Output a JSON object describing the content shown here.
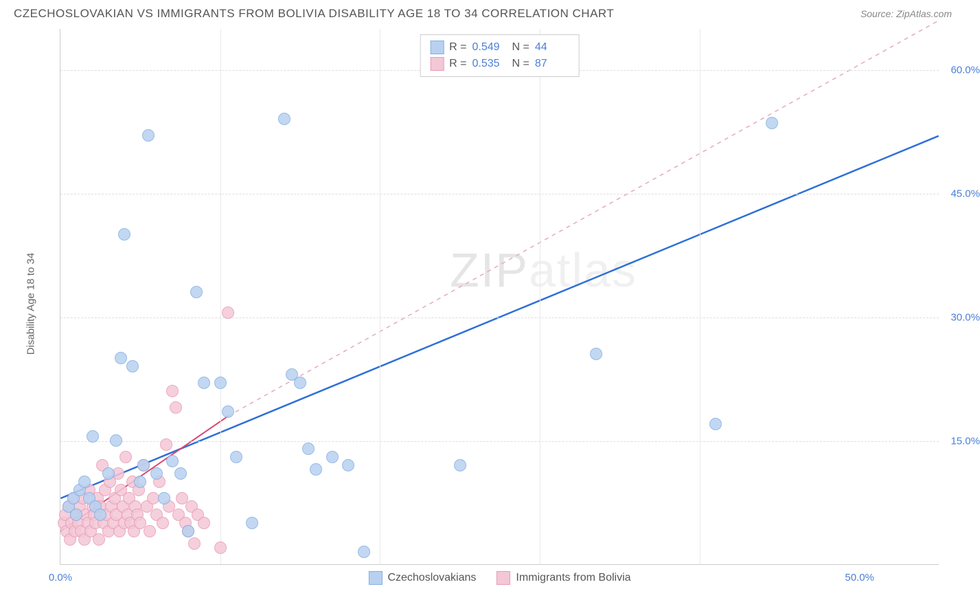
{
  "title": "CZECHOSLOVAKIAN VS IMMIGRANTS FROM BOLIVIA DISABILITY AGE 18 TO 34 CORRELATION CHART",
  "source": "Source: ZipAtlas.com",
  "watermark": {
    "z": "ZIP",
    "rest": "atlas"
  },
  "chart": {
    "type": "scatter",
    "ylabel": "Disability Age 18 to 34",
    "xlim": [
      0,
      55
    ],
    "ylim": [
      0,
      65
    ],
    "xticks": [
      {
        "v": 0,
        "l": "0.0%"
      },
      {
        "v": 50,
        "l": "50.0%"
      }
    ],
    "xminor": [
      10,
      20,
      30,
      40
    ],
    "yticks": [
      {
        "v": 15,
        "l": "15.0%"
      },
      {
        "v": 30,
        "l": "30.0%"
      },
      {
        "v": 45,
        "l": "45.0%"
      },
      {
        "v": 60,
        "l": "60.0%"
      }
    ],
    "grid_color": "#dddddd",
    "background_color": "#ffffff",
    "axis_color": "#cccccc",
    "tick_label_color": "#4a7fd8",
    "point_radius": 9,
    "series": [
      {
        "name": "Czechoslovakians",
        "color_fill": "#b8d1f0",
        "color_stroke": "#84aee0",
        "R": "0.549",
        "N": "44",
        "trend": {
          "x1": 0,
          "y1": 8,
          "x2": 55,
          "y2": 52,
          "style": "solid",
          "color": "#2e6fd8",
          "width": 2.5
        },
        "points": [
          [
            0.5,
            7
          ],
          [
            0.8,
            8
          ],
          [
            1,
            6
          ],
          [
            1.2,
            9
          ],
          [
            1.5,
            10
          ],
          [
            1.8,
            8
          ],
          [
            2,
            15.5
          ],
          [
            2.2,
            7
          ],
          [
            2.5,
            6
          ],
          [
            3,
            11
          ],
          [
            3.5,
            15
          ],
          [
            3.8,
            25
          ],
          [
            4,
            40
          ],
          [
            4.5,
            24
          ],
          [
            5,
            10
          ],
          [
            5.2,
            12
          ],
          [
            5.5,
            52
          ],
          [
            6,
            11
          ],
          [
            6.5,
            8
          ],
          [
            7,
            12.5
          ],
          [
            7.5,
            11
          ],
          [
            8,
            4
          ],
          [
            8.5,
            33
          ],
          [
            9,
            22
          ],
          [
            10,
            22
          ],
          [
            10.5,
            18.5
          ],
          [
            11,
            13
          ],
          [
            12,
            5
          ],
          [
            14,
            54
          ],
          [
            14.5,
            23
          ],
          [
            15,
            22
          ],
          [
            15.5,
            14
          ],
          [
            16,
            11.5
          ],
          [
            17,
            13
          ],
          [
            18,
            12
          ],
          [
            19,
            1.5
          ],
          [
            25,
            12
          ],
          [
            33.5,
            25.5
          ],
          [
            41,
            17
          ],
          [
            44.5,
            53.5
          ]
        ]
      },
      {
        "name": "Immigrants from Bolivia",
        "color_fill": "#f4c7d6",
        "color_stroke": "#e89bb4",
        "R": "0.535",
        "N": "87",
        "trend": {
          "x1": 0,
          "y1": 4,
          "x2": 10.5,
          "y2": 18,
          "style": "solid",
          "color": "#d8466f",
          "width": 2
        },
        "trend_ext": {
          "x1": 10.5,
          "y1": 18,
          "x2": 55,
          "y2": 66,
          "style": "dashed",
          "color": "#e8a8bd",
          "width": 1.5
        },
        "points": [
          [
            0.2,
            5
          ],
          [
            0.3,
            6
          ],
          [
            0.4,
            4
          ],
          [
            0.5,
            7
          ],
          [
            0.6,
            3
          ],
          [
            0.7,
            5
          ],
          [
            0.8,
            8
          ],
          [
            0.9,
            4
          ],
          [
            1,
            6
          ],
          [
            1.1,
            5
          ],
          [
            1.2,
            7
          ],
          [
            1.3,
            4
          ],
          [
            1.4,
            8
          ],
          [
            1.5,
            3
          ],
          [
            1.6,
            6
          ],
          [
            1.7,
            5
          ],
          [
            1.8,
            9
          ],
          [
            1.9,
            4
          ],
          [
            2,
            7
          ],
          [
            2.1,
            6
          ],
          [
            2.2,
            5
          ],
          [
            2.3,
            8
          ],
          [
            2.4,
            3
          ],
          [
            2.5,
            7
          ],
          [
            2.6,
            12
          ],
          [
            2.7,
            5
          ],
          [
            2.8,
            9
          ],
          [
            2.9,
            6
          ],
          [
            3,
            4
          ],
          [
            3.1,
            10
          ],
          [
            3.2,
            7
          ],
          [
            3.3,
            5
          ],
          [
            3.4,
            8
          ],
          [
            3.5,
            6
          ],
          [
            3.6,
            11
          ],
          [
            3.7,
            4
          ],
          [
            3.8,
            9
          ],
          [
            3.9,
            7
          ],
          [
            4,
            5
          ],
          [
            4.1,
            13
          ],
          [
            4.2,
            6
          ],
          [
            4.3,
            8
          ],
          [
            4.4,
            5
          ],
          [
            4.5,
            10
          ],
          [
            4.6,
            4
          ],
          [
            4.7,
            7
          ],
          [
            4.8,
            6
          ],
          [
            4.9,
            9
          ],
          [
            5,
            5
          ],
          [
            5.2,
            12
          ],
          [
            5.4,
            7
          ],
          [
            5.6,
            4
          ],
          [
            5.8,
            8
          ],
          [
            6,
            6
          ],
          [
            6.2,
            10
          ],
          [
            6.4,
            5
          ],
          [
            6.6,
            14.5
          ],
          [
            6.8,
            7
          ],
          [
            7,
            21
          ],
          [
            7.2,
            19
          ],
          [
            7.4,
            6
          ],
          [
            7.6,
            8
          ],
          [
            7.8,
            5
          ],
          [
            8,
            4
          ],
          [
            8.2,
            7
          ],
          [
            8.4,
            2.5
          ],
          [
            8.6,
            6
          ],
          [
            9,
            5
          ],
          [
            10,
            2
          ],
          [
            10.5,
            30.5
          ]
        ]
      }
    ],
    "legend_top": {
      "rows": [
        {
          "swatch_fill": "#b8d1f0",
          "swatch_stroke": "#84aee0",
          "r_label": "R =",
          "r_val": "0.549",
          "n_label": "N =",
          "n_val": "44"
        },
        {
          "swatch_fill": "#f4c7d6",
          "swatch_stroke": "#e89bb4",
          "r_label": "R =",
          "r_val": "0.535",
          "n_label": "N =",
          "n_val": "87"
        }
      ]
    },
    "legend_bottom": [
      {
        "swatch_fill": "#b8d1f0",
        "swatch_stroke": "#84aee0",
        "label": "Czechoslovakians"
      },
      {
        "swatch_fill": "#f4c7d6",
        "swatch_stroke": "#e89bb4",
        "label": "Immigrants from Bolivia"
      }
    ]
  }
}
